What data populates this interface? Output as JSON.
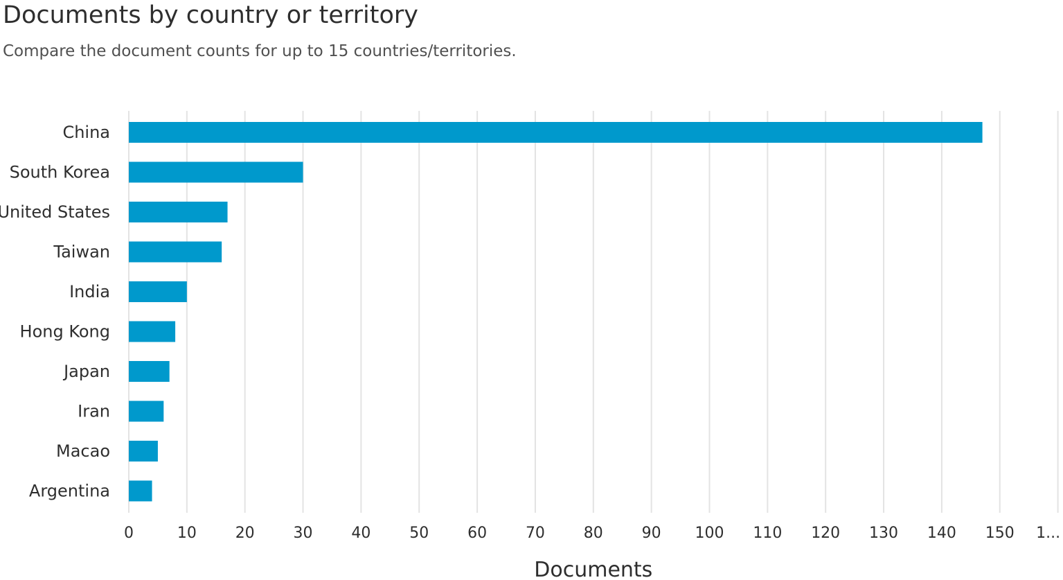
{
  "header": {
    "title": "Documents by country or territory",
    "subtitle": "Compare the document counts for up to 15 countries/territories."
  },
  "colors": {
    "bar": "#0099cc",
    "grid": "#e3e3e3"
  },
  "chart_data": {
    "type": "bar",
    "orientation": "horizontal",
    "title": "Documents by country or territory",
    "subtitle": "Compare the document counts for up to 15 countries/territories.",
    "categories": [
      "China",
      "South Korea",
      "United States",
      "Taiwan",
      "India",
      "Hong Kong",
      "Japan",
      "Iran",
      "Macao",
      "Argentina"
    ],
    "values": [
      147,
      30,
      17,
      16,
      10,
      8,
      7,
      6,
      5,
      4
    ],
    "xlabel": "Documents",
    "ylabel": "",
    "xlim": [
      0,
      160
    ],
    "xticks": [
      "0",
      "10",
      "20",
      "30",
      "40",
      "50",
      "60",
      "70",
      "80",
      "90",
      "100",
      "110",
      "120",
      "130",
      "140",
      "150",
      "1..."
    ],
    "grid": "vertical",
    "legend": "none"
  }
}
